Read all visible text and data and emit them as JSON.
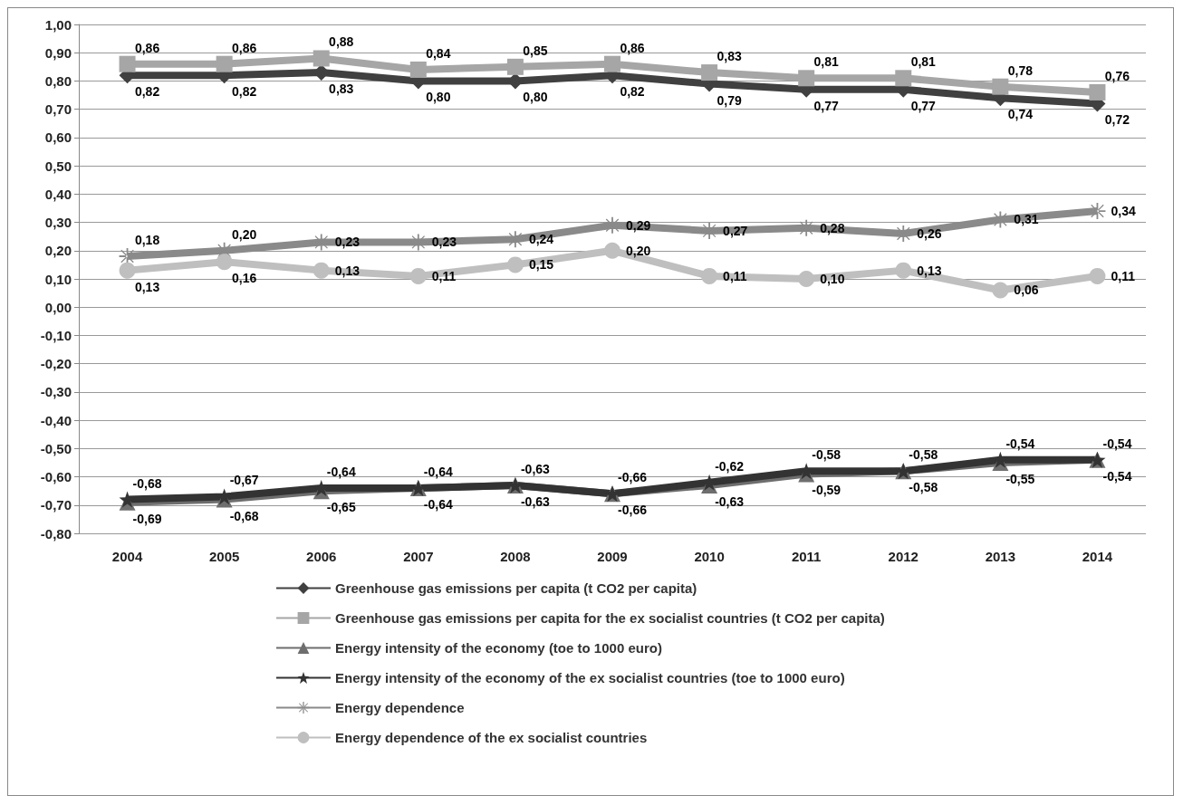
{
  "chart_data": {
    "type": "line",
    "categories": [
      "2004",
      "2005",
      "2006",
      "2007",
      "2008",
      "2009",
      "2010",
      "2011",
      "2012",
      "2013",
      "2014"
    ],
    "ylim": [
      -0.8,
      1.0
    ],
    "yticks": [
      {
        "value": -0.8,
        "label": "-0,80"
      },
      {
        "value": -0.7,
        "label": "-0,70"
      },
      {
        "value": -0.6,
        "label": "-0,60"
      },
      {
        "value": -0.5,
        "label": "-0,50"
      },
      {
        "value": -0.4,
        "label": "-0,40"
      },
      {
        "value": -0.3,
        "label": "-0,30"
      },
      {
        "value": -0.2,
        "label": "-0,20"
      },
      {
        "value": -0.1,
        "label": "-0,10"
      },
      {
        "value": 0,
        "label": "0,00"
      },
      {
        "value": 0.1,
        "label": "0,10"
      },
      {
        "value": 0.2,
        "label": "0,20"
      },
      {
        "value": 0.3,
        "label": "0,30"
      },
      {
        "value": 0.4,
        "label": "0,40"
      },
      {
        "value": 0.5,
        "label": "0,50"
      },
      {
        "value": 0.6,
        "label": "0,60"
      },
      {
        "value": 0.7,
        "label": "0,70"
      },
      {
        "value": 0.8,
        "label": "0,80"
      },
      {
        "value": 0.9,
        "label": "0,90"
      },
      {
        "value": 1.0,
        "label": "1,00"
      }
    ],
    "grid": "y",
    "legend": "bottom",
    "series": [
      {
        "name": "Greenhouse gas emissions per capita (t CO2 per capita)",
        "color": "#404040",
        "marker": "diamond",
        "values": [
          0.82,
          0.82,
          0.83,
          0.8,
          0.8,
          0.82,
          0.79,
          0.77,
          0.77,
          0.74,
          0.72
        ],
        "value_labels": [
          "0,82",
          "0,82",
          "0,83",
          "0,80",
          "0,80",
          "0,82",
          "0,79",
          "0,77",
          "0,77",
          "0,74",
          "0,72"
        ]
      },
      {
        "name": "Greenhouse gas emissions per capita for the ex socialist countries (t CO2 per capita)",
        "color": "#a6a6a6",
        "marker": "square",
        "values": [
          0.86,
          0.86,
          0.88,
          0.84,
          0.85,
          0.86,
          0.83,
          0.81,
          0.81,
          0.78,
          0.76
        ],
        "value_labels": [
          "0,86",
          "0,86",
          "0,88",
          "0,84",
          "0,85",
          "0,86",
          "0,83",
          "0,81",
          "0,81",
          "0,78",
          "0,76"
        ]
      },
      {
        "name": "Energy intensity of the economy (toe to 1000 euro)",
        "color": "#6e6e6e",
        "marker": "triangle",
        "values": [
          -0.69,
          -0.68,
          -0.65,
          -0.64,
          -0.63,
          -0.66,
          -0.63,
          -0.59,
          -0.58,
          -0.55,
          -0.54
        ],
        "value_labels": [
          "-0,69",
          "-0,68",
          "-0,65",
          "-0,64",
          "-0,63",
          "-0,66",
          "-0,63",
          "-0,59",
          "-0,58",
          "-0,55",
          "-0,54"
        ]
      },
      {
        "name": "Energy intensity of the economy of the ex socialist countries (toe to 1000 euro)",
        "color": "#333333",
        "marker": "star",
        "values": [
          -0.68,
          -0.67,
          -0.64,
          -0.64,
          -0.63,
          -0.66,
          -0.62,
          -0.58,
          -0.58,
          -0.54,
          -0.54
        ],
        "value_labels": [
          "-0,68",
          "-0,67",
          "-0,64",
          "-0,64",
          "-0,63",
          "-0,66",
          "-0,62",
          "-0,58",
          "-0,58",
          "-0,54",
          "-0,54"
        ]
      },
      {
        "name": "Energy dependence",
        "color": "#8a8a8a",
        "marker": "cross",
        "values": [
          0.18,
          0.2,
          0.23,
          0.23,
          0.24,
          0.29,
          0.27,
          0.28,
          0.26,
          0.31,
          0.34
        ],
        "value_labels": [
          "0,18",
          "0,20",
          "0,23",
          "0,23",
          "0,24",
          "0,29",
          "0,27",
          "0,28",
          "0,26",
          "0,31",
          "0,34"
        ]
      },
      {
        "name": "Energy dependence of the ex socialist countries",
        "color": "#bfbfbf",
        "marker": "circle",
        "values": [
          0.13,
          0.16,
          0.13,
          0.11,
          0.15,
          0.2,
          0.11,
          0.1,
          0.13,
          0.06,
          0.11
        ],
        "value_labels": [
          "0,13",
          "0,16",
          "0,13",
          "0,11",
          "0,15",
          "0,20",
          "0,11",
          "0,10",
          "0,13",
          "0,06",
          "0,11"
        ]
      }
    ]
  }
}
